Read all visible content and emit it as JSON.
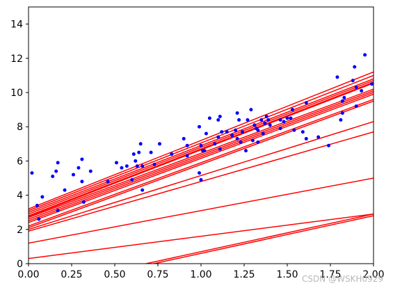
{
  "chart_data": {
    "type": "scatter",
    "title": "",
    "xlabel": "",
    "ylabel": "",
    "xlim": [
      0,
      2
    ],
    "ylim": [
      0,
      15
    ],
    "x_ticks": [
      "0.00",
      "0.25",
      "0.50",
      "0.75",
      "1.00",
      "1.25",
      "1.50",
      "1.75",
      "2.00"
    ],
    "y_ticks": [
      "0",
      "2",
      "4",
      "6",
      "8",
      "10",
      "12",
      "14"
    ],
    "grid": false,
    "colors": {
      "points": "#0000ff",
      "lines": "#ff0000"
    },
    "scatter": {
      "marker": "dot",
      "points": [
        [
          0.02,
          5.3
        ],
        [
          0.05,
          3.4
        ],
        [
          0.06,
          2.6
        ],
        [
          0.08,
          3.9
        ],
        [
          0.14,
          5.1
        ],
        [
          0.16,
          5.4
        ],
        [
          0.17,
          5.9
        ],
        [
          0.17,
          3.1
        ],
        [
          0.21,
          4.3
        ],
        [
          0.26,
          5.2
        ],
        [
          0.29,
          5.6
        ],
        [
          0.31,
          6.1
        ],
        [
          0.31,
          4.8
        ],
        [
          0.32,
          3.6
        ],
        [
          0.36,
          5.4
        ],
        [
          0.46,
          4.8
        ],
        [
          0.51,
          5.9
        ],
        [
          0.54,
          5.6
        ],
        [
          0.57,
          5.7
        ],
        [
          0.6,
          4.9
        ],
        [
          0.61,
          6.4
        ],
        [
          0.62,
          6.0
        ],
        [
          0.63,
          5.7
        ],
        [
          0.64,
          6.5
        ],
        [
          0.65,
          7.0
        ],
        [
          0.66,
          4.3
        ],
        [
          0.66,
          5.7
        ],
        [
          0.71,
          6.5
        ],
        [
          0.73,
          5.8
        ],
        [
          0.76,
          7.0
        ],
        [
          0.83,
          6.4
        ],
        [
          0.9,
          7.3
        ],
        [
          0.92,
          6.3
        ],
        [
          0.92,
          6.9
        ],
        [
          0.99,
          8.0
        ],
        [
          0.99,
          5.3
        ],
        [
          1.0,
          6.9
        ],
        [
          1.0,
          4.9
        ],
        [
          1.01,
          6.6
        ],
        [
          1.02,
          6.6
        ],
        [
          1.03,
          7.6
        ],
        [
          1.05,
          8.5
        ],
        [
          1.08,
          7.0
        ],
        [
          1.1,
          7.4
        ],
        [
          1.1,
          8.4
        ],
        [
          1.11,
          8.6
        ],
        [
          1.11,
          6.7
        ],
        [
          1.12,
          7.7
        ],
        [
          1.15,
          7.7
        ],
        [
          1.18,
          7.5
        ],
        [
          1.2,
          7.8
        ],
        [
          1.21,
          8.8
        ],
        [
          1.21,
          7.3
        ],
        [
          1.22,
          8.4
        ],
        [
          1.23,
          7.1
        ],
        [
          1.24,
          7.7
        ],
        [
          1.26,
          6.6
        ],
        [
          1.27,
          8.4
        ],
        [
          1.29,
          9.0
        ],
        [
          1.3,
          7.2
        ],
        [
          1.31,
          8.1
        ],
        [
          1.32,
          7.9
        ],
        [
          1.33,
          7.8
        ],
        [
          1.33,
          7.1
        ],
        [
          1.35,
          8.4
        ],
        [
          1.36,
          7.6
        ],
        [
          1.37,
          8.2
        ],
        [
          1.38,
          8.6
        ],
        [
          1.39,
          8.4
        ],
        [
          1.4,
          8.1
        ],
        [
          1.46,
          7.9
        ],
        [
          1.46,
          8.4
        ],
        [
          1.48,
          8.3
        ],
        [
          1.5,
          8.5
        ],
        [
          1.52,
          8.5
        ],
        [
          1.53,
          9.0
        ],
        [
          1.54,
          7.8
        ],
        [
          1.59,
          7.7
        ],
        [
          1.61,
          9.4
        ],
        [
          1.61,
          7.3
        ],
        [
          1.68,
          7.4
        ],
        [
          1.74,
          6.9
        ],
        [
          1.79,
          10.9
        ],
        [
          1.81,
          8.4
        ],
        [
          1.82,
          8.8
        ],
        [
          1.82,
          9.5
        ],
        [
          1.83,
          9.7
        ],
        [
          1.88,
          10.7
        ],
        [
          1.89,
          11.5
        ],
        [
          1.9,
          9.2
        ],
        [
          1.9,
          10.3
        ],
        [
          1.93,
          10.1
        ],
        [
          1.95,
          12.2
        ],
        [
          1.99,
          10.5
        ]
      ]
    },
    "lines": [
      {
        "intercept": -1.6,
        "slope": 2.2
      },
      {
        "intercept": -1.5,
        "slope": 2.2
      },
      {
        "intercept": 0.3,
        "slope": 1.3
      },
      {
        "intercept": 1.2,
        "slope": 1.9
      },
      {
        "intercept": 1.9,
        "slope": 2.9
      },
      {
        "intercept": 2.0,
        "slope": 3.15
      },
      {
        "intercept": 2.1,
        "slope": 3.7
      },
      {
        "intercept": 2.2,
        "slope": 3.7
      },
      {
        "intercept": 2.4,
        "slope": 3.75
      },
      {
        "intercept": 2.5,
        "slope": 3.75
      },
      {
        "intercept": 2.6,
        "slope": 3.75
      },
      {
        "intercept": 2.7,
        "slope": 3.75
      },
      {
        "intercept": 2.75,
        "slope": 3.9
      },
      {
        "intercept": 2.8,
        "slope": 3.9
      },
      {
        "intercept": 2.9,
        "slope": 3.9
      },
      {
        "intercept": 3.0,
        "slope": 3.9
      },
      {
        "intercept": 3.1,
        "slope": 3.95
      },
      {
        "intercept": 3.2,
        "slope": 4.0
      }
    ]
  },
  "watermark": "CSDN @WSKH0929"
}
